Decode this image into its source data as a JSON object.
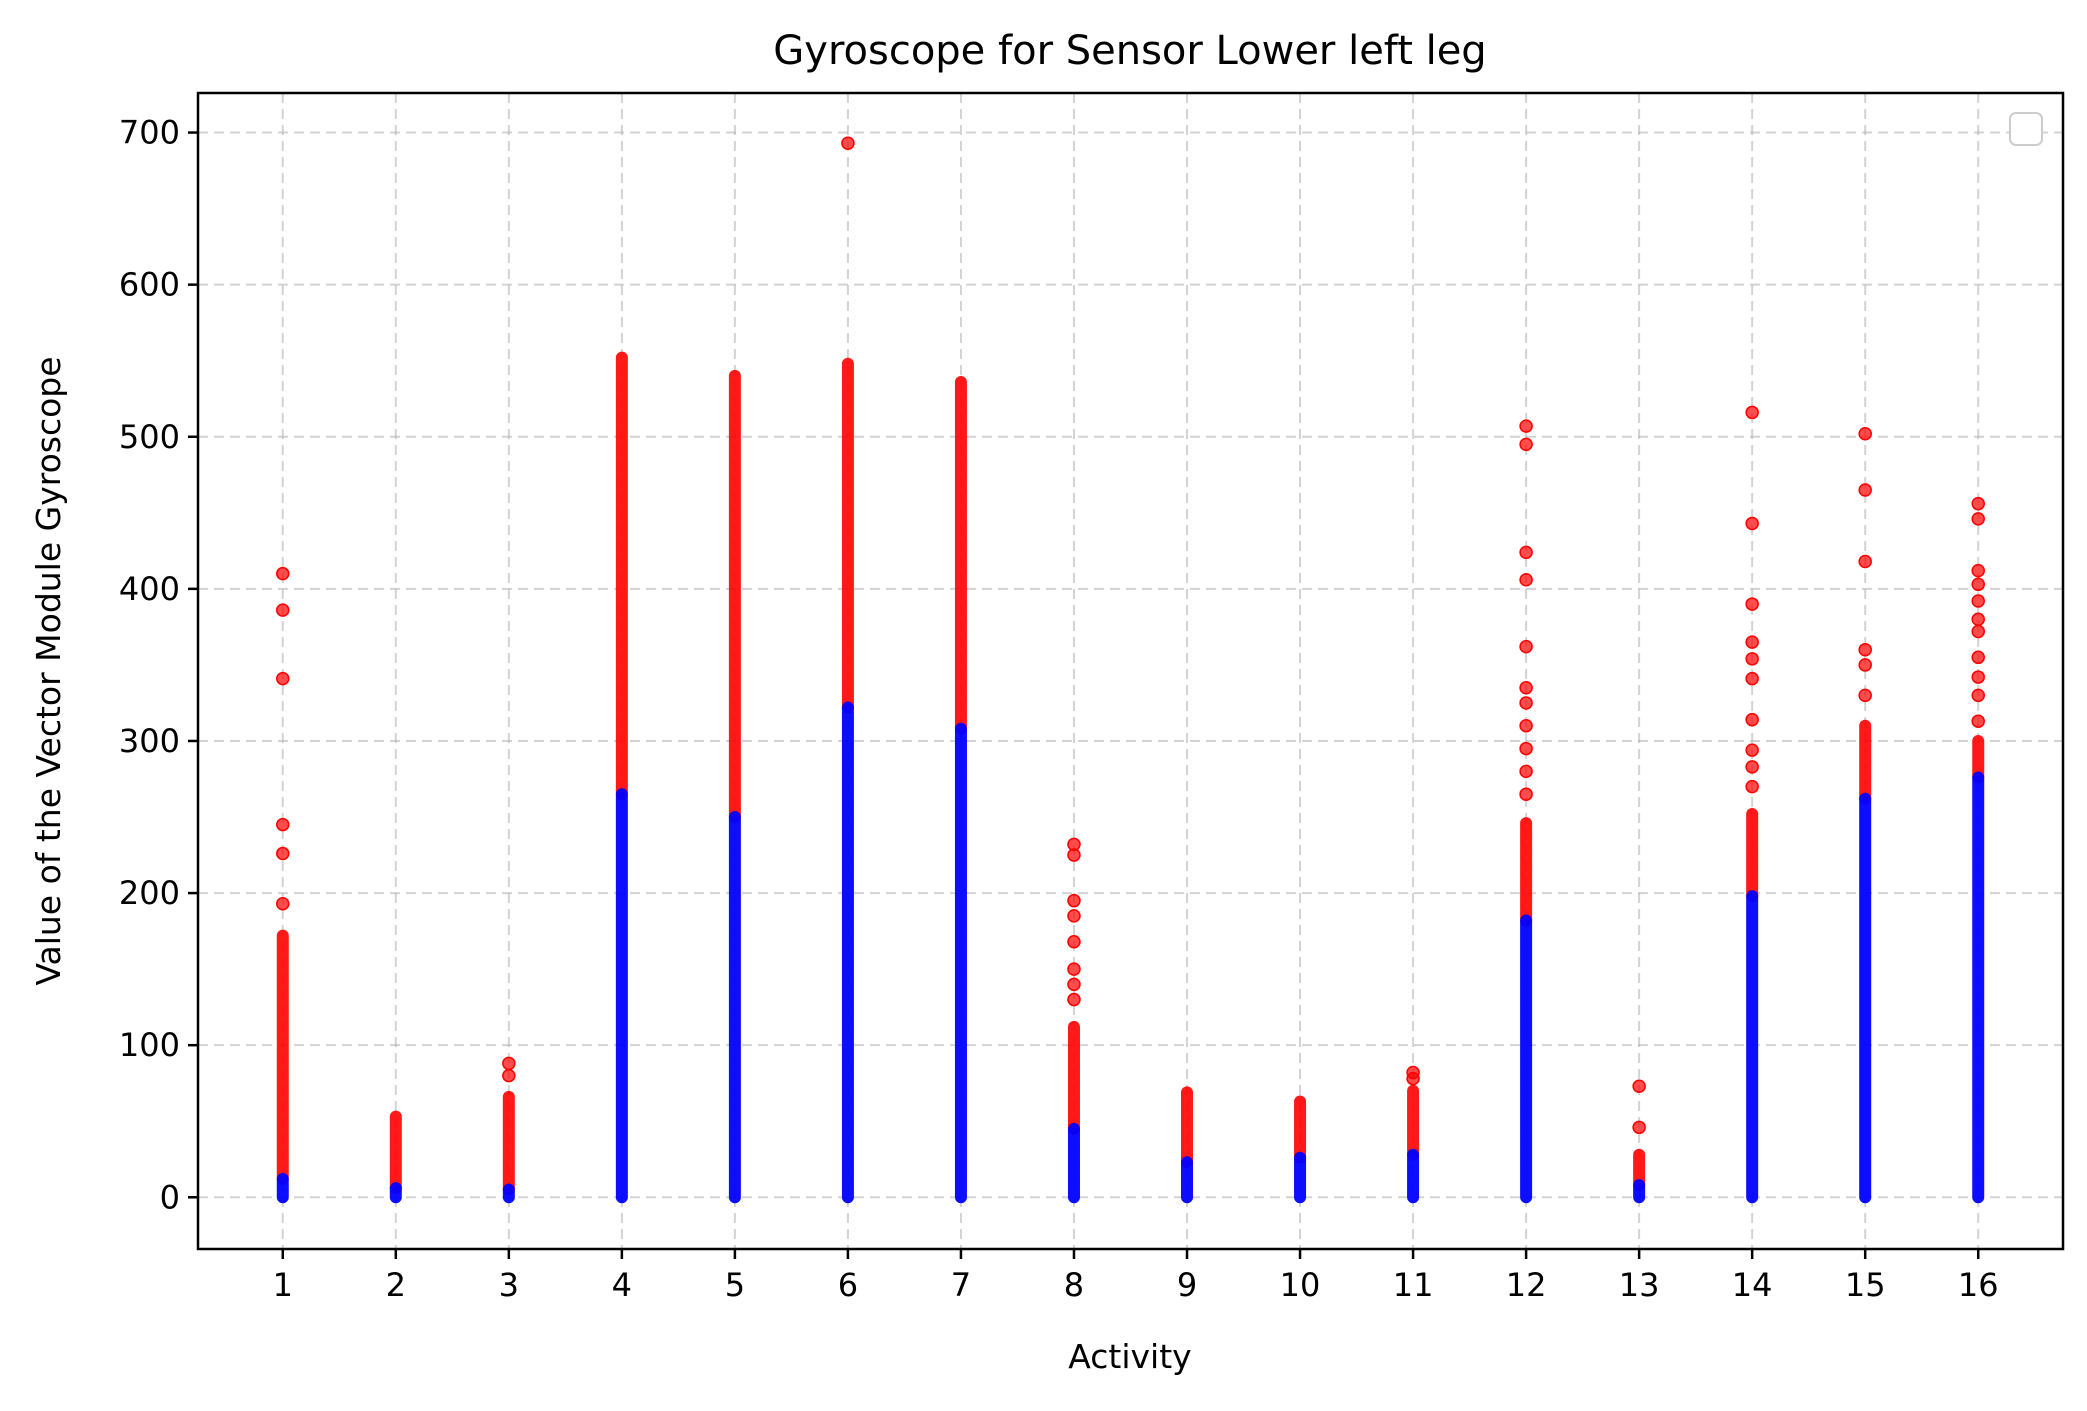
{
  "chart_data": {
    "type": "scatter",
    "title": "Gyroscope for Sensor Lower left leg",
    "xlabel": "Activity",
    "ylabel": "Value of the Vector Module Gyroscope",
    "x_ticks": [
      "1",
      "2",
      "3",
      "4",
      "5",
      "6",
      "7",
      "8",
      "9",
      "10",
      "11",
      "12",
      "13",
      "14",
      "15",
      "16"
    ],
    "y_ticks": [
      "0",
      "100",
      "200",
      "300",
      "400",
      "500",
      "600",
      "700"
    ],
    "xlim": [
      0.25,
      16.75
    ],
    "ylim": [
      -34,
      726
    ],
    "grid": true,
    "legend": "top-right (empty)",
    "colors": {
      "normal": "#0000ff",
      "outlier": "#ff0000"
    },
    "series": [
      {
        "activity": 1,
        "normal_max": 12,
        "outlier_range": [
          12,
          172
        ],
        "outlier_points": [
          193,
          226,
          245,
          341,
          386,
          410
        ]
      },
      {
        "activity": 2,
        "normal_max": 6,
        "outlier_range": [
          6,
          53
        ],
        "outlier_points": []
      },
      {
        "activity": 3,
        "normal_max": 5,
        "outlier_range": [
          5,
          66
        ],
        "outlier_points": [
          80,
          88
        ]
      },
      {
        "activity": 4,
        "normal_max": 265,
        "outlier_range": [
          265,
          552
        ],
        "outlier_points": []
      },
      {
        "activity": 5,
        "normal_max": 250,
        "outlier_range": [
          250,
          540
        ],
        "outlier_points": []
      },
      {
        "activity": 6,
        "normal_max": 322,
        "outlier_range": [
          322,
          548
        ],
        "outlier_points": [
          693
        ]
      },
      {
        "activity": 7,
        "normal_max": 308,
        "outlier_range": [
          308,
          536
        ],
        "outlier_points": []
      },
      {
        "activity": 8,
        "normal_max": 45,
        "outlier_range": [
          45,
          112
        ],
        "outlier_points": [
          130,
          140,
          150,
          168,
          185,
          195,
          225,
          232
        ]
      },
      {
        "activity": 9,
        "normal_max": 23,
        "outlier_range": [
          23,
          69
        ],
        "outlier_points": []
      },
      {
        "activity": 10,
        "normal_max": 26,
        "outlier_range": [
          26,
          63
        ],
        "outlier_points": []
      },
      {
        "activity": 11,
        "normal_max": 28,
        "outlier_range": [
          28,
          70
        ],
        "outlier_points": [
          78,
          82
        ]
      },
      {
        "activity": 12,
        "normal_max": 182,
        "outlier_range": [
          182,
          246
        ],
        "outlier_points": [
          265,
          280,
          295,
          310,
          325,
          335,
          362,
          406,
          424,
          495,
          507
        ]
      },
      {
        "activity": 13,
        "normal_max": 8,
        "outlier_range": [
          8,
          28
        ],
        "outlier_points": [
          46,
          73
        ]
      },
      {
        "activity": 14,
        "normal_max": 198,
        "outlier_range": [
          198,
          252
        ],
        "outlier_points": [
          270,
          283,
          294,
          314,
          341,
          354,
          365,
          390,
          443,
          516
        ]
      },
      {
        "activity": 15,
        "normal_max": 262,
        "outlier_range": [
          262,
          310
        ],
        "outlier_points": [
          330,
          350,
          360,
          418,
          465,
          502
        ]
      },
      {
        "activity": 16,
        "normal_max": 276,
        "outlier_range": [
          276,
          300
        ],
        "outlier_points": [
          313,
          330,
          342,
          355,
          372,
          380,
          392,
          403,
          412,
          446,
          456
        ]
      }
    ]
  }
}
